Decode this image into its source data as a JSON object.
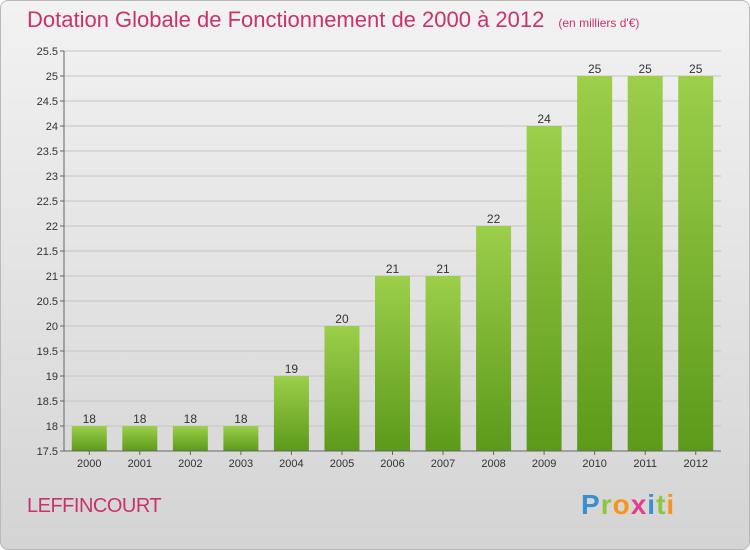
{
  "chart_data": {
    "type": "bar",
    "title": "Dotation Globale de Fonctionnement de 2000 à 2012",
    "unit": "(en milliers d'€)",
    "categories": [
      "2000",
      "2001",
      "2002",
      "2003",
      "2004",
      "2005",
      "2006",
      "2007",
      "2008",
      "2009",
      "2010",
      "2011",
      "2012"
    ],
    "values": [
      18,
      18,
      18,
      18,
      19,
      20,
      21,
      21,
      22,
      24,
      25,
      25,
      25
    ],
    "ylim": [
      17.5,
      25.5
    ],
    "yticks": [
      "17.5",
      "18",
      "18.5",
      "19",
      "19.5",
      "20",
      "20.5",
      "21",
      "21.5",
      "22",
      "22.5",
      "23",
      "23.5",
      "24",
      "24.5",
      "25",
      "25.5"
    ],
    "grid": true,
    "colors": {
      "bar_top": "#9ccf4a",
      "bar_bottom": "#5c9a1a",
      "title": "#c8326e"
    }
  },
  "commune": "LEFFINCOURT",
  "logo": {
    "p": "P",
    "r": "r",
    "o": "o",
    "x": "x",
    "i1": "i",
    "t": "t",
    "i2": "i"
  }
}
